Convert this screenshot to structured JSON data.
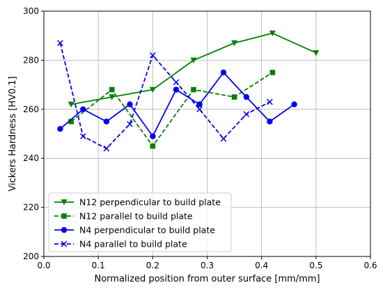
{
  "chart_data": {
    "type": "line",
    "title": "",
    "xlabel": "Normalized position from outer surface [mm/mm]",
    "ylabel": "Vickers Hardness [HV0.1]",
    "xlim": [
      0.0,
      0.6
    ],
    "ylim": [
      200,
      300
    ],
    "xticks": [
      "0.0",
      "0.1",
      "0.2",
      "0.3",
      "0.4",
      "0.5",
      "0.6"
    ],
    "yticks": [
      "200",
      "220",
      "240",
      "260",
      "280",
      "300"
    ],
    "grid": true,
    "legend_position": "lower-left",
    "series": [
      {
        "name": "N12 perpendicular to build plate",
        "color": "#008000",
        "line_style": "solid",
        "marker": "triangle-down",
        "x": [
          0.05,
          0.125,
          0.2,
          0.275,
          0.35,
          0.42,
          0.5
        ],
        "y": [
          262,
          265,
          268,
          280,
          287,
          291,
          283
        ]
      },
      {
        "name": "N12 parallel to build plate",
        "color": "#008000",
        "line_style": "dashed",
        "marker": "square",
        "x": [
          0.05,
          0.125,
          0.2,
          0.275,
          0.35,
          0.42
        ],
        "y": [
          255,
          268,
          245,
          268,
          265,
          275
        ]
      },
      {
        "name": "N4 perpendicular to build plate",
        "color": "#0000ee",
        "line_style": "solid",
        "marker": "circle",
        "x": [
          0.03,
          0.072,
          0.115,
          0.158,
          0.2,
          0.243,
          0.286,
          0.33,
          0.372,
          0.415,
          0.46
        ],
        "y": [
          252,
          260,
          255,
          262,
          249,
          268,
          262,
          275,
          265,
          255,
          262
        ]
      },
      {
        "name": "N4 parallel to build plate",
        "color": "#0000ee",
        "line_style": "dashed",
        "marker": "x",
        "x": [
          0.03,
          0.072,
          0.115,
          0.158,
          0.2,
          0.243,
          0.286,
          0.33,
          0.372,
          0.415
        ],
        "y": [
          287,
          249,
          244,
          254,
          282,
          271,
          260,
          248,
          258,
          263
        ]
      }
    ]
  }
}
